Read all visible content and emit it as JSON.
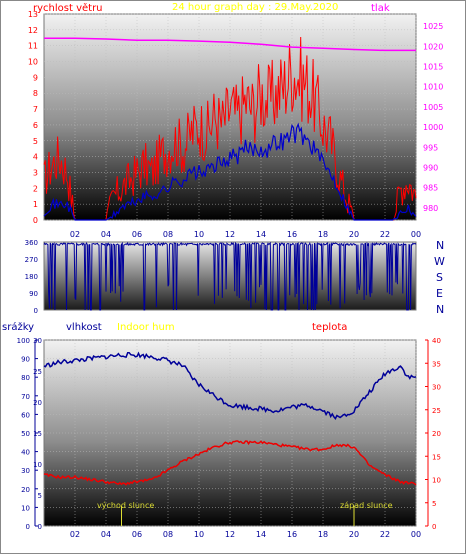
{
  "header": {
    "wind_label": "rychlost větru",
    "title": "24 hour graph day : 29.May.2020",
    "pressure_label": "tlak"
  },
  "compass": [
    "N",
    "W",
    "S",
    "E",
    "N"
  ],
  "lower_header": {
    "rain_label": "srážky",
    "humidity_label": "vlhkost",
    "indoor_hum_label": "Indoor hum",
    "temp_label": "teplota"
  },
  "markers": {
    "sunrise_label": "východ slunce",
    "sunset_label": "západ slunce",
    "sunrise_time": 5.0,
    "sunset_time": 20.0
  },
  "colors": {
    "wind_gust": "#ff0000",
    "wind_avg": "#0000cc",
    "pressure": "#ff00ff",
    "direction": "#000099",
    "humidity": "#000099",
    "temperature": "#ee0000",
    "wind_axis": "#ff0000",
    "pressure_axis": "#ff00ff",
    "rain_axis": "#000099",
    "temp_axis": "#ff0000",
    "title": "#ffff00",
    "marker": "#dddd33"
  },
  "chart_data": [
    {
      "type": "line",
      "title": "24 hour graph day : 29.May.2020",
      "x_ticks": [
        "02",
        "04",
        "06",
        "08",
        "10",
        "12",
        "14",
        "16",
        "18",
        "20",
        "22",
        "00"
      ],
      "y_left": {
        "label": "rychlost větru",
        "range": [
          0,
          13
        ],
        "ticks": [
          "0",
          "1",
          "2",
          "3",
          "4",
          "5",
          "6",
          "7",
          "8",
          "9",
          "10",
          "11",
          "12",
          "13"
        ]
      },
      "y_right": {
        "label": "tlak",
        "range": [
          977,
          1028
        ],
        "ticks": [
          "980",
          "985",
          "990",
          "995",
          "1000",
          "1005",
          "1010",
          "1015",
          "1020",
          "1025"
        ]
      },
      "grid": true,
      "series": [
        {
          "name": "gust",
          "axis": "left",
          "x": [
            0,
            0.5,
            1,
            1.5,
            2,
            2.5,
            3,
            3.5,
            4,
            4.5,
            5,
            5.5,
            6,
            6.5,
            7,
            7.5,
            8,
            8.5,
            9,
            9.5,
            10,
            10.5,
            11,
            11.5,
            12,
            12.5,
            13,
            13.5,
            14,
            14.5,
            15,
            15.5,
            16,
            16.5,
            17,
            17.5,
            18,
            18.5,
            19,
            19.5,
            20,
            20.5,
            21,
            21.5,
            22,
            22.5,
            23,
            23.5,
            24
          ],
          "values": [
            2.5,
            3.5,
            4,
            3,
            0,
            0,
            0,
            0,
            0,
            1.5,
            2,
            2.5,
            3,
            3.5,
            3,
            4,
            4.5,
            5,
            4.5,
            5.5,
            6,
            5.5,
            6.5,
            6,
            7,
            6.5,
            7.5,
            7,
            8,
            7.5,
            8,
            8.5,
            9.5,
            9,
            8.5,
            7.5,
            6,
            5,
            3,
            1.5,
            0,
            0,
            0,
            0,
            0,
            0,
            2,
            2.5,
            1.5
          ]
        },
        {
          "name": "average",
          "axis": "left",
          "x": [
            0,
            0.5,
            1,
            1.5,
            2,
            2.5,
            3,
            3.5,
            4,
            4.5,
            5,
            5.5,
            6,
            6.5,
            7,
            7.5,
            8,
            8.5,
            9,
            9.5,
            10,
            10.5,
            11,
            11.5,
            12,
            12.5,
            13,
            13.5,
            14,
            14.5,
            15,
            15.5,
            16,
            16.5,
            17,
            17.5,
            18,
            18.5,
            19,
            19.5,
            20,
            20.5,
            21,
            21.5,
            22,
            22.5,
            23,
            23.5,
            24
          ],
          "values": [
            0.5,
            1,
            1,
            1,
            0,
            0,
            0,
            0,
            0,
            0.3,
            0.8,
            1,
            1.2,
            1.5,
            1.5,
            1.8,
            2,
            2.5,
            2.5,
            3,
            3,
            3,
            3.5,
            3.5,
            4,
            4,
            4.5,
            4.5,
            4.5,
            4.5,
            5,
            5,
            5.5,
            5.5,
            5,
            4.5,
            3.5,
            3,
            2,
            1,
            0,
            0,
            0,
            0,
            0,
            0,
            0.5,
            0.8,
            0.3
          ]
        },
        {
          "name": "pressure",
          "axis": "right",
          "x": [
            0,
            2,
            4,
            6,
            8,
            10,
            12,
            14,
            16,
            18,
            20,
            22,
            24
          ],
          "values": [
            1022,
            1022,
            1021.8,
            1021.5,
            1021.5,
            1021.3,
            1021,
            1020.5,
            1019.8,
            1019.5,
            1019.2,
            1019,
            1019
          ]
        }
      ]
    },
    {
      "type": "line",
      "title": "",
      "y_left": {
        "range": [
          0,
          360
        ],
        "ticks": [
          "0",
          "30",
          "60",
          "90",
          "120",
          "150",
          "180",
          "210",
          "240",
          "270",
          "300",
          "330",
          "360"
        ]
      },
      "series": [
        {
          "name": "direction",
          "x": [
            0,
            1,
            2,
            3,
            4,
            5,
            6,
            7,
            8,
            9,
            10,
            11,
            12,
            13,
            14,
            15,
            16,
            17,
            18,
            19,
            20,
            21,
            22,
            23,
            24
          ],
          "values": [
            355,
            200,
            350,
            10,
            355,
            340,
            350,
            200,
            355,
            40,
            350,
            300,
            355,
            250,
            350,
            20,
            350,
            200,
            355,
            300,
            350,
            340,
            350,
            355,
            10
          ]
        }
      ]
    },
    {
      "type": "line",
      "title": "",
      "x_ticks": [
        "02",
        "04",
        "06",
        "08",
        "10",
        "12",
        "14",
        "16",
        "18",
        "20",
        "22",
        "00"
      ],
      "y_left": {
        "label": "srážky",
        "range": [
          0,
          100
        ],
        "ticks": [
          "0",
          "10",
          "20",
          "30",
          "40",
          "50",
          "60",
          "70",
          "80",
          "90",
          "100"
        ]
      },
      "y_left2": {
        "label": "vlhkost",
        "range": [
          0,
          30
        ],
        "ticks": [
          "0",
          "5",
          "10",
          "15",
          "20",
          "25",
          "30"
        ]
      },
      "y_right": {
        "label": "teplota",
        "range": [
          0,
          40
        ],
        "ticks": [
          "0",
          "5",
          "10",
          "15",
          "20",
          "25",
          "30",
          "35",
          "40"
        ]
      },
      "grid": true,
      "series": [
        {
          "name": "vlhkost",
          "axis": "left",
          "x": [
            0,
            1,
            2,
            3,
            4,
            5,
            6,
            7,
            8,
            9,
            9.5,
            10,
            11,
            12,
            13,
            14,
            15,
            16,
            17,
            18,
            19,
            20,
            21,
            22,
            23,
            23.5,
            24
          ],
          "values": [
            86,
            88,
            89,
            90,
            91,
            92,
            92,
            91,
            89,
            86,
            80,
            76,
            70,
            65,
            64,
            63,
            62,
            64,
            65,
            62,
            58,
            62,
            72,
            82,
            86,
            80,
            80
          ]
        },
        {
          "name": "teplota",
          "axis": "right",
          "x": [
            0,
            1,
            2,
            3,
            4,
            5,
            6,
            7,
            8,
            9,
            10,
            11,
            12,
            13,
            14,
            15,
            16,
            17,
            18,
            19,
            20,
            21,
            22,
            23,
            24
          ],
          "values": [
            11,
            10.5,
            10.5,
            10,
            9.5,
            9,
            9.5,
            10,
            12,
            14,
            15.5,
            17,
            18,
            18,
            18,
            17.5,
            17,
            16.5,
            16.5,
            17.5,
            17,
            13,
            11,
            9.5,
            9
          ]
        }
      ]
    }
  ]
}
